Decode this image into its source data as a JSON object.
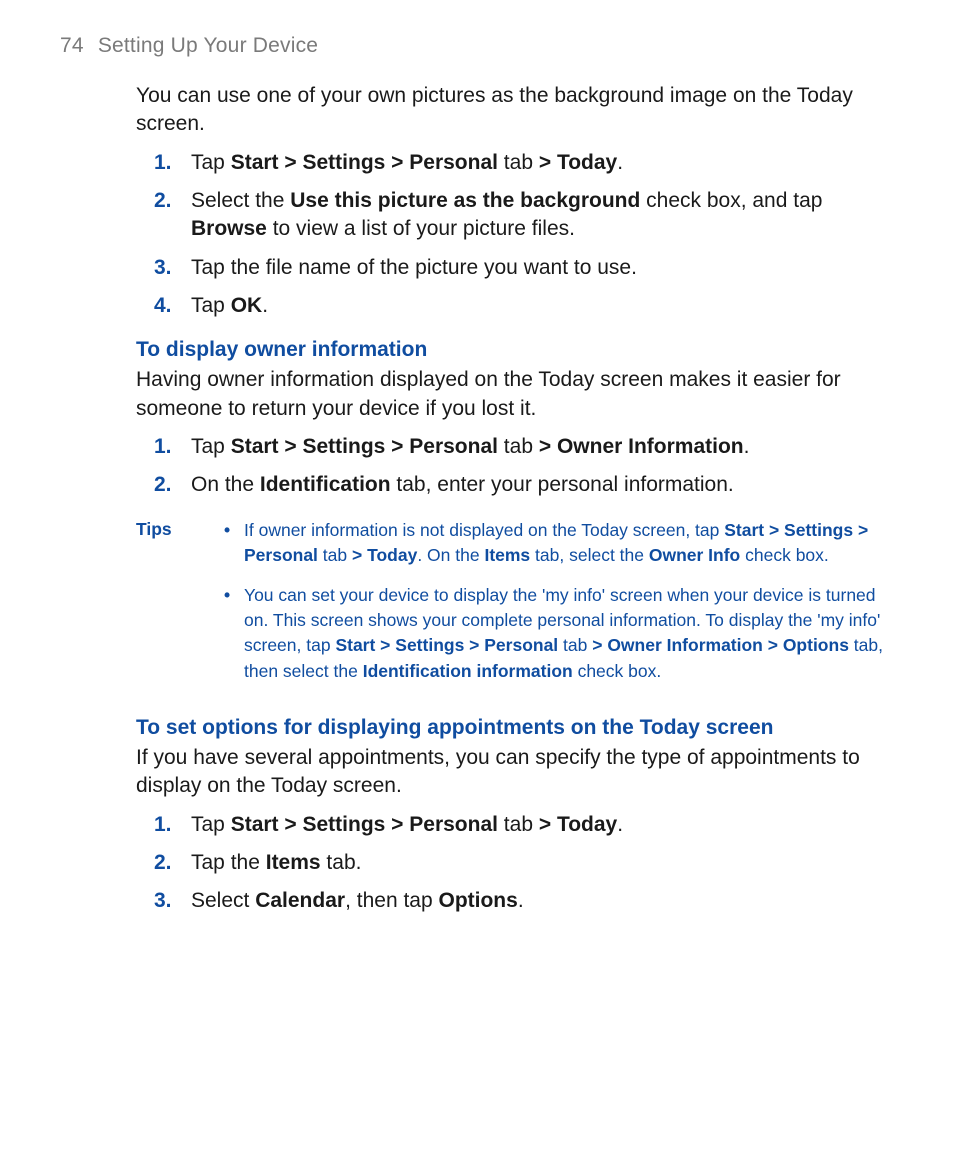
{
  "header": {
    "page_number": "74",
    "section_title": "Setting Up Your Device"
  },
  "intro_para": "You can use one of your own pictures as the background image on the Today screen.",
  "steps1": [
    {
      "n": "1.",
      "pre": "Tap ",
      "bold1": "Start > Settings > Personal",
      "mid1": " tab ",
      "bold2": "> Today",
      "post": "."
    },
    {
      "n": "2.",
      "pre": "Select the ",
      "bold1": "Use this picture as the background",
      "mid1": " check box, and tap ",
      "bold2": "Browse",
      "post": " to view a list of your picture files."
    },
    {
      "n": "3.",
      "pre": "Tap the file name of the picture you want to use.",
      "bold1": "",
      "mid1": "",
      "bold2": "",
      "post": ""
    },
    {
      "n": "4.",
      "pre": "Tap ",
      "bold1": "OK",
      "mid1": "",
      "bold2": "",
      "post": "."
    }
  ],
  "h_owner": "To display owner information",
  "owner_para": "Having owner information displayed on the Today screen makes it easier for someone to return your device if you lost it.",
  "steps2": [
    {
      "n": "1.",
      "pre": "Tap ",
      "bold1": "Start > Settings > Personal",
      "mid1": " tab ",
      "bold2": "> Owner Information",
      "post": "."
    },
    {
      "n": "2.",
      "pre": "On the ",
      "bold1": "Identification",
      "mid1": " tab, enter your personal information.",
      "bold2": "",
      "post": ""
    }
  ],
  "tips_label": "Tips",
  "tips": [
    {
      "t0": "If owner information is not displayed on the Today screen, tap ",
      "b0": "Start > Settings > Personal",
      "t1": " tab ",
      "b1": "> Today",
      "t2": ". On the ",
      "b2": "Items",
      "t3": " tab, select the ",
      "b3": "Owner Info",
      "t4": " check box.",
      "b4": "",
      "t5": "",
      "b5": "",
      "t6": ""
    },
    {
      "t0": "You can set your device to display the 'my info' screen when your device is turned on. This screen shows your complete personal information. To display the 'my info' screen, tap ",
      "b0": "Start > Settings > Personal",
      "t1": " tab ",
      "b1": "> Owner Information > Options",
      "t2": " tab, then select the ",
      "b2": "Identification information",
      "t3": " check box.",
      "b3": "",
      "t4": "",
      "b4": "",
      "t5": "",
      "b5": "",
      "t6": ""
    }
  ],
  "h_appts": "To set options for displaying appointments on the Today screen",
  "appts_para": "If you have several appointments, you can specify the type of appointments to display on the Today screen.",
  "steps3": [
    {
      "n": "1.",
      "pre": "Tap ",
      "bold1": "Start > Settings > Personal",
      "mid1": " tab ",
      "bold2": "> Today",
      "post": "."
    },
    {
      "n": "2.",
      "pre": "Tap the ",
      "bold1": "Items",
      "mid1": " tab.",
      "bold2": "",
      "post": ""
    },
    {
      "n": "3.",
      "pre": "Select ",
      "bold1": "Calendar",
      "mid1": ", then tap ",
      "bold2": "Options",
      "post": "."
    }
  ]
}
